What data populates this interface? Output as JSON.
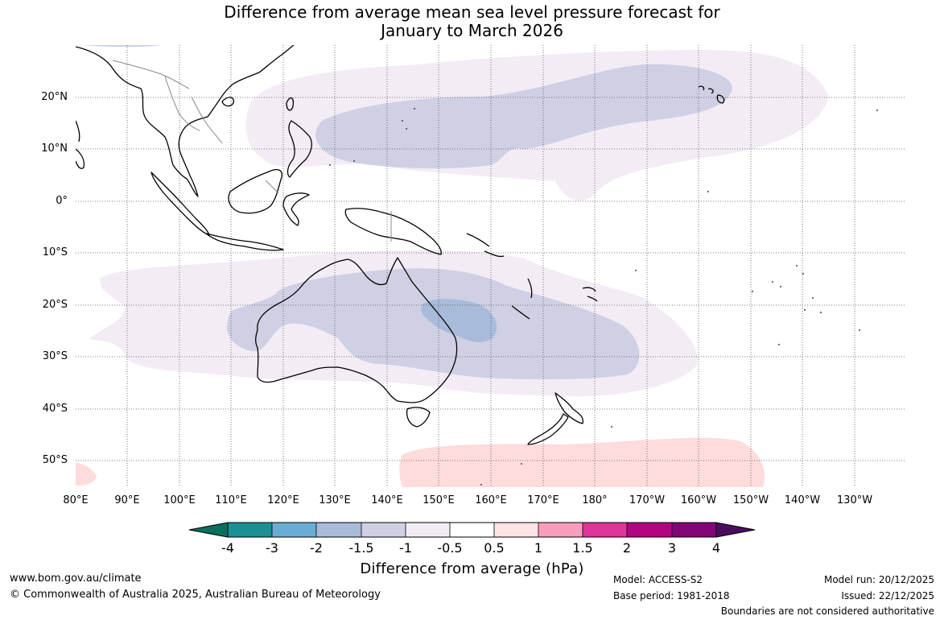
{
  "title": {
    "line1": "Difference from average mean sea level pressure forecast for",
    "line2": "January to March 2026"
  },
  "map": {
    "latitude_labels": [
      "20°N",
      "10°N",
      "0°",
      "10°S",
      "20°S",
      "30°S",
      "40°S",
      "50°S"
    ],
    "longitude_labels": [
      "80°E",
      "90°E",
      "100°E",
      "110°E",
      "120°E",
      "130°E",
      "140°E",
      "150°E",
      "160°E",
      "170°E",
      "180°",
      "170°W",
      "160°W",
      "150°W",
      "140°W",
      "130°W"
    ],
    "extent": {
      "lon_min": 80,
      "lon_max": 235,
      "lat_min": -55,
      "lat_max": 30
    },
    "anomaly_regions": [
      {
        "label": "-0.5 to -1",
        "class": "-1 to -0.5",
        "color": "#f3ecf5",
        "region": "northern tropical Pacific band"
      },
      {
        "label": "-1 to -1.5",
        "class": "-1.5 to -1",
        "color": "#cfd0e4",
        "region": "north-west Pacific"
      },
      {
        "label": "-0.5 to -1",
        "class": "-1 to -0.5",
        "color": "#f3ecf5",
        "region": "Australia and south-west Pacific"
      },
      {
        "label": "-1 to -1.5",
        "class": "-1.5 to -1",
        "color": "#cfd0e4",
        "region": "Australia"
      },
      {
        "label": "-1.5 to -2",
        "class": "-2 to -1.5",
        "color": "#a9bbda",
        "region": "Queensland"
      },
      {
        "label": "0.5 to 1",
        "class": "0.5 to 1",
        "color": "#fddcdb",
        "region": "Southern Ocean"
      }
    ]
  },
  "colorbar": {
    "colors": [
      "#0b6f5d",
      "#1a9094",
      "#6aadd4",
      "#a9bbda",
      "#cfd0e4",
      "#f3ecf5",
      "#ffffff",
      "#fde3e3",
      "#f89dbb",
      "#dd3697",
      "#b20480",
      "#820477",
      "#4d0b5f"
    ],
    "tick_labels": [
      "-4",
      "-3",
      "-2",
      "-1.5",
      "-1",
      "-0.5",
      "0.5",
      "1",
      "1.5",
      "2",
      "3",
      "4"
    ],
    "title": "Difference from average (hPa)"
  },
  "footer": {
    "website": "www.bom.gov.au/climate",
    "copyright": "© Commonwealth of Australia 2025, Australian Bureau of Meteorology",
    "model": "Model: ACCESS-S2",
    "base_period": "Base period: 1981-2018",
    "model_run": "Model run: 20/12/2025",
    "issued": "Issued: 22/12/2025",
    "disclaimer": "Boundaries are not considered authoritative"
  }
}
